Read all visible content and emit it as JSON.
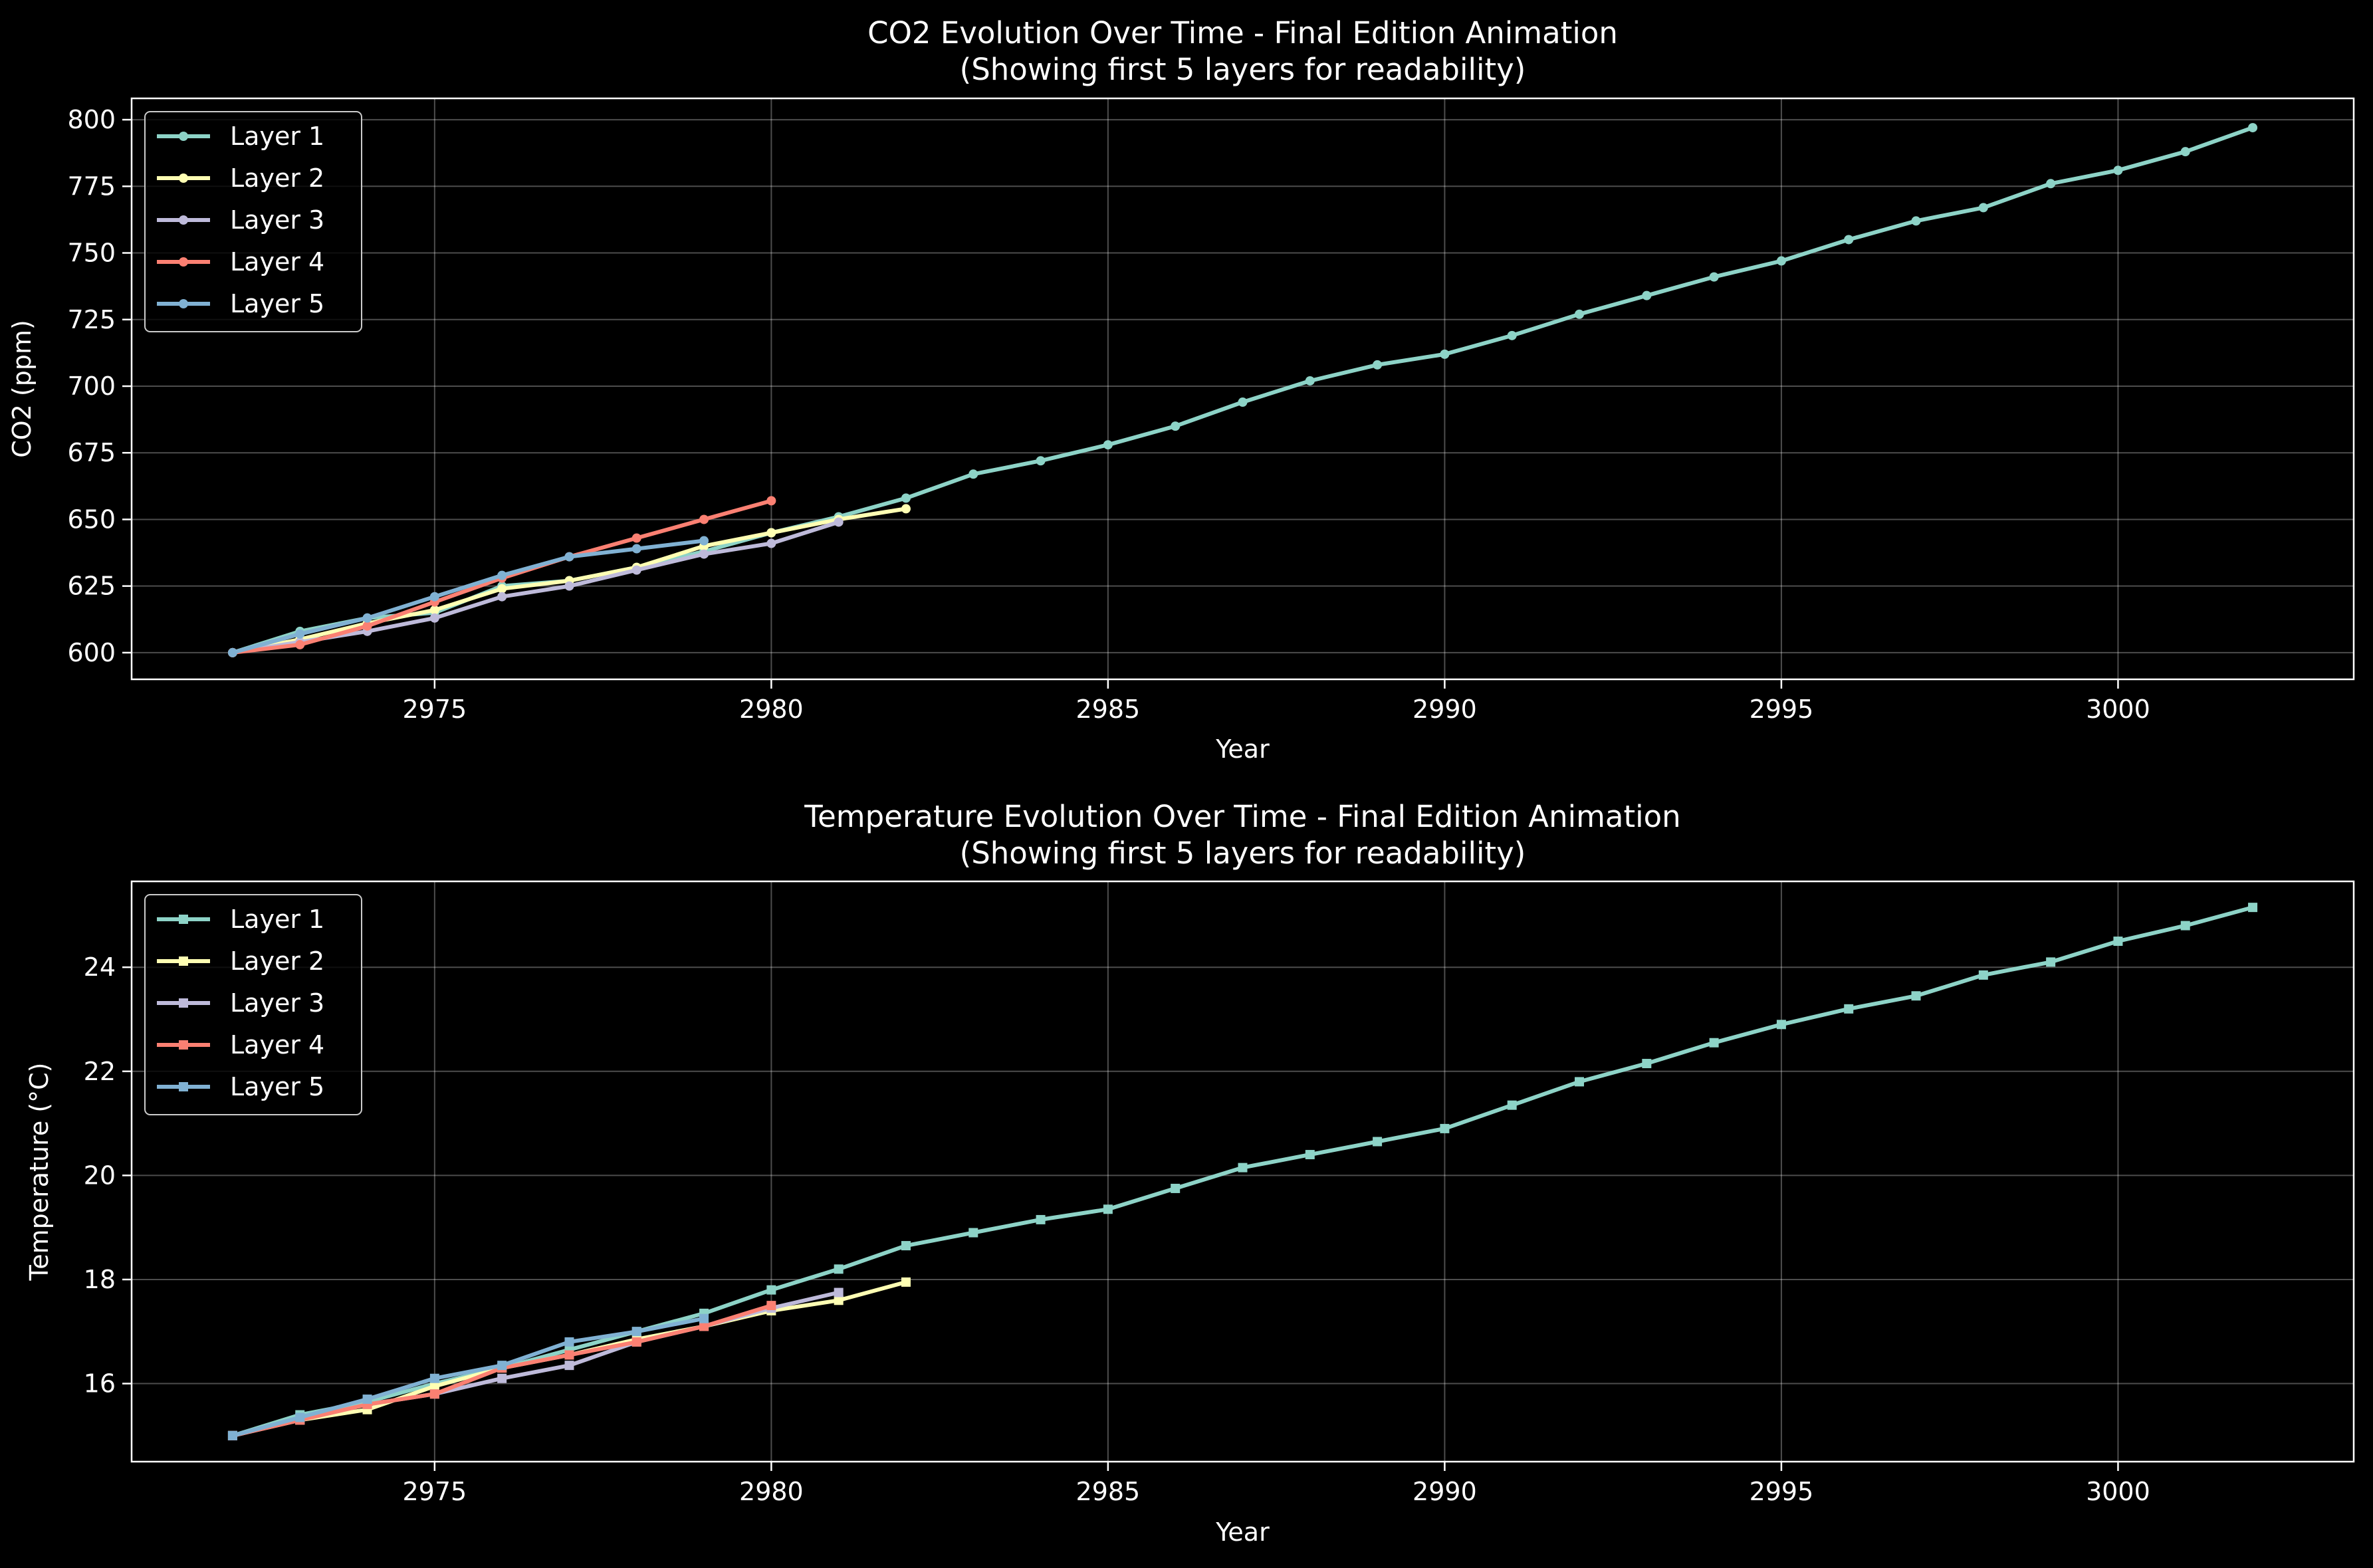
{
  "chart_data": [
    {
      "type": "line",
      "title": "CO2 Evolution Over Time - Final Edition Animation",
      "subtitle": "(Showing first 5 layers for readability)",
      "xlabel": "Year",
      "ylabel": "CO2 (ppm)",
      "xlim": [
        2970.5,
        3003.5
      ],
      "ylim": [
        590,
        808
      ],
      "xticks": [
        2975,
        2980,
        2985,
        2990,
        2995,
        3000
      ],
      "yticks": [
        600,
        625,
        650,
        675,
        700,
        725,
        750,
        775,
        800
      ],
      "grid": true,
      "legend_position": "top-left",
      "marker": "circle",
      "series": [
        {
          "name": "Layer 1",
          "color": "#8dd3c7",
          "x": [
            2972,
            2973,
            2974,
            2975,
            2976,
            2977,
            2978,
            2979,
            2980,
            2981,
            2982,
            2983,
            2984,
            2985,
            2986,
            2987,
            2988,
            2989,
            2990,
            2991,
            2992,
            2993,
            2994,
            2995,
            2996,
            2997,
            2998,
            2999,
            3000,
            3001,
            3002
          ],
          "y": [
            600,
            608,
            613,
            615,
            625,
            627,
            632,
            638,
            645,
            651,
            658,
            667,
            672,
            678,
            685,
            694,
            702,
            708,
            712,
            719,
            727,
            734,
            741,
            747,
            755,
            762,
            767,
            776,
            781,
            788,
            797
          ]
        },
        {
          "name": "Layer 2",
          "color": "#ffffb3",
          "x": [
            2972,
            2973,
            2974,
            2975,
            2976,
            2977,
            2978,
            2979,
            2980,
            2981,
            2982
          ],
          "y": [
            600,
            605,
            611,
            616,
            624,
            627,
            632,
            640,
            645,
            650,
            654
          ]
        },
        {
          "name": "Layer 3",
          "color": "#bebada",
          "x": [
            2972,
            2973,
            2974,
            2975,
            2976,
            2977,
            2978,
            2979,
            2980,
            2981
          ],
          "y": [
            600,
            604,
            608,
            613,
            621,
            625,
            631,
            637,
            641,
            649
          ]
        },
        {
          "name": "Layer 4",
          "color": "#fb8072",
          "x": [
            2972,
            2973,
            2974,
            2975,
            2976,
            2977,
            2978,
            2979,
            2980
          ],
          "y": [
            600,
            603,
            610,
            619,
            628,
            636,
            643,
            650,
            657
          ]
        },
        {
          "name": "Layer 5",
          "color": "#80b1d3",
          "x": [
            2972,
            2973,
            2974,
            2975,
            2976,
            2977,
            2978,
            2979
          ],
          "y": [
            600,
            607,
            613,
            621,
            629,
            636,
            639,
            642
          ]
        }
      ]
    },
    {
      "type": "line",
      "title": "Temperature Evolution Over Time - Final Edition Animation",
      "subtitle": "(Showing first 5 layers for readability)",
      "xlabel": "Year",
      "ylabel": "Temperature (°C)",
      "xlim": [
        2970.5,
        3003.5
      ],
      "ylim": [
        14.5,
        25.65
      ],
      "xticks": [
        2975,
        2980,
        2985,
        2990,
        2995,
        3000
      ],
      "yticks": [
        16,
        18,
        20,
        22,
        24
      ],
      "grid": true,
      "legend_position": "top-left",
      "marker": "square",
      "series": [
        {
          "name": "Layer 1",
          "color": "#8dd3c7",
          "x": [
            2972,
            2973,
            2974,
            2975,
            2976,
            2977,
            2978,
            2979,
            2980,
            2981,
            2982,
            2983,
            2984,
            2985,
            2986,
            2987,
            2988,
            2989,
            2990,
            2991,
            2992,
            2993,
            2994,
            2995,
            2996,
            2997,
            2998,
            2999,
            3000,
            3001,
            3002
          ],
          "y": [
            15.0,
            15.4,
            15.65,
            16.0,
            16.3,
            16.65,
            17.0,
            17.35,
            17.8,
            18.2,
            18.65,
            18.9,
            19.15,
            19.35,
            19.75,
            20.15,
            20.4,
            20.65,
            20.9,
            21.35,
            21.8,
            22.15,
            22.55,
            22.9,
            23.2,
            23.45,
            23.85,
            24.1,
            24.5,
            24.8,
            25.15
          ]
        },
        {
          "name": "Layer 2",
          "color": "#ffffb3",
          "x": [
            2972,
            2973,
            2974,
            2975,
            2976,
            2977,
            2978,
            2979,
            2980,
            2981,
            2982
          ],
          "y": [
            15.0,
            15.3,
            15.5,
            15.95,
            16.3,
            16.55,
            16.85,
            17.1,
            17.4,
            17.6,
            17.95
          ]
        },
        {
          "name": "Layer 3",
          "color": "#bebada",
          "x": [
            2972,
            2973,
            2974,
            2975,
            2976,
            2977,
            2978,
            2979,
            2980,
            2981
          ],
          "y": [
            15.0,
            15.3,
            15.6,
            15.8,
            16.1,
            16.35,
            16.8,
            17.1,
            17.45,
            17.75
          ]
        },
        {
          "name": "Layer 4",
          "color": "#fb8072",
          "x": [
            2972,
            2973,
            2974,
            2975,
            2976,
            2977,
            2978,
            2979,
            2980
          ],
          "y": [
            15.0,
            15.3,
            15.6,
            15.8,
            16.3,
            16.55,
            16.8,
            17.1,
            17.5
          ]
        },
        {
          "name": "Layer 5",
          "color": "#80b1d3",
          "x": [
            2972,
            2973,
            2974,
            2975,
            2976,
            2977,
            2978,
            2979
          ],
          "y": [
            15.0,
            15.35,
            15.7,
            16.1,
            16.35,
            16.8,
            17.0,
            17.25
          ]
        }
      ]
    }
  ]
}
